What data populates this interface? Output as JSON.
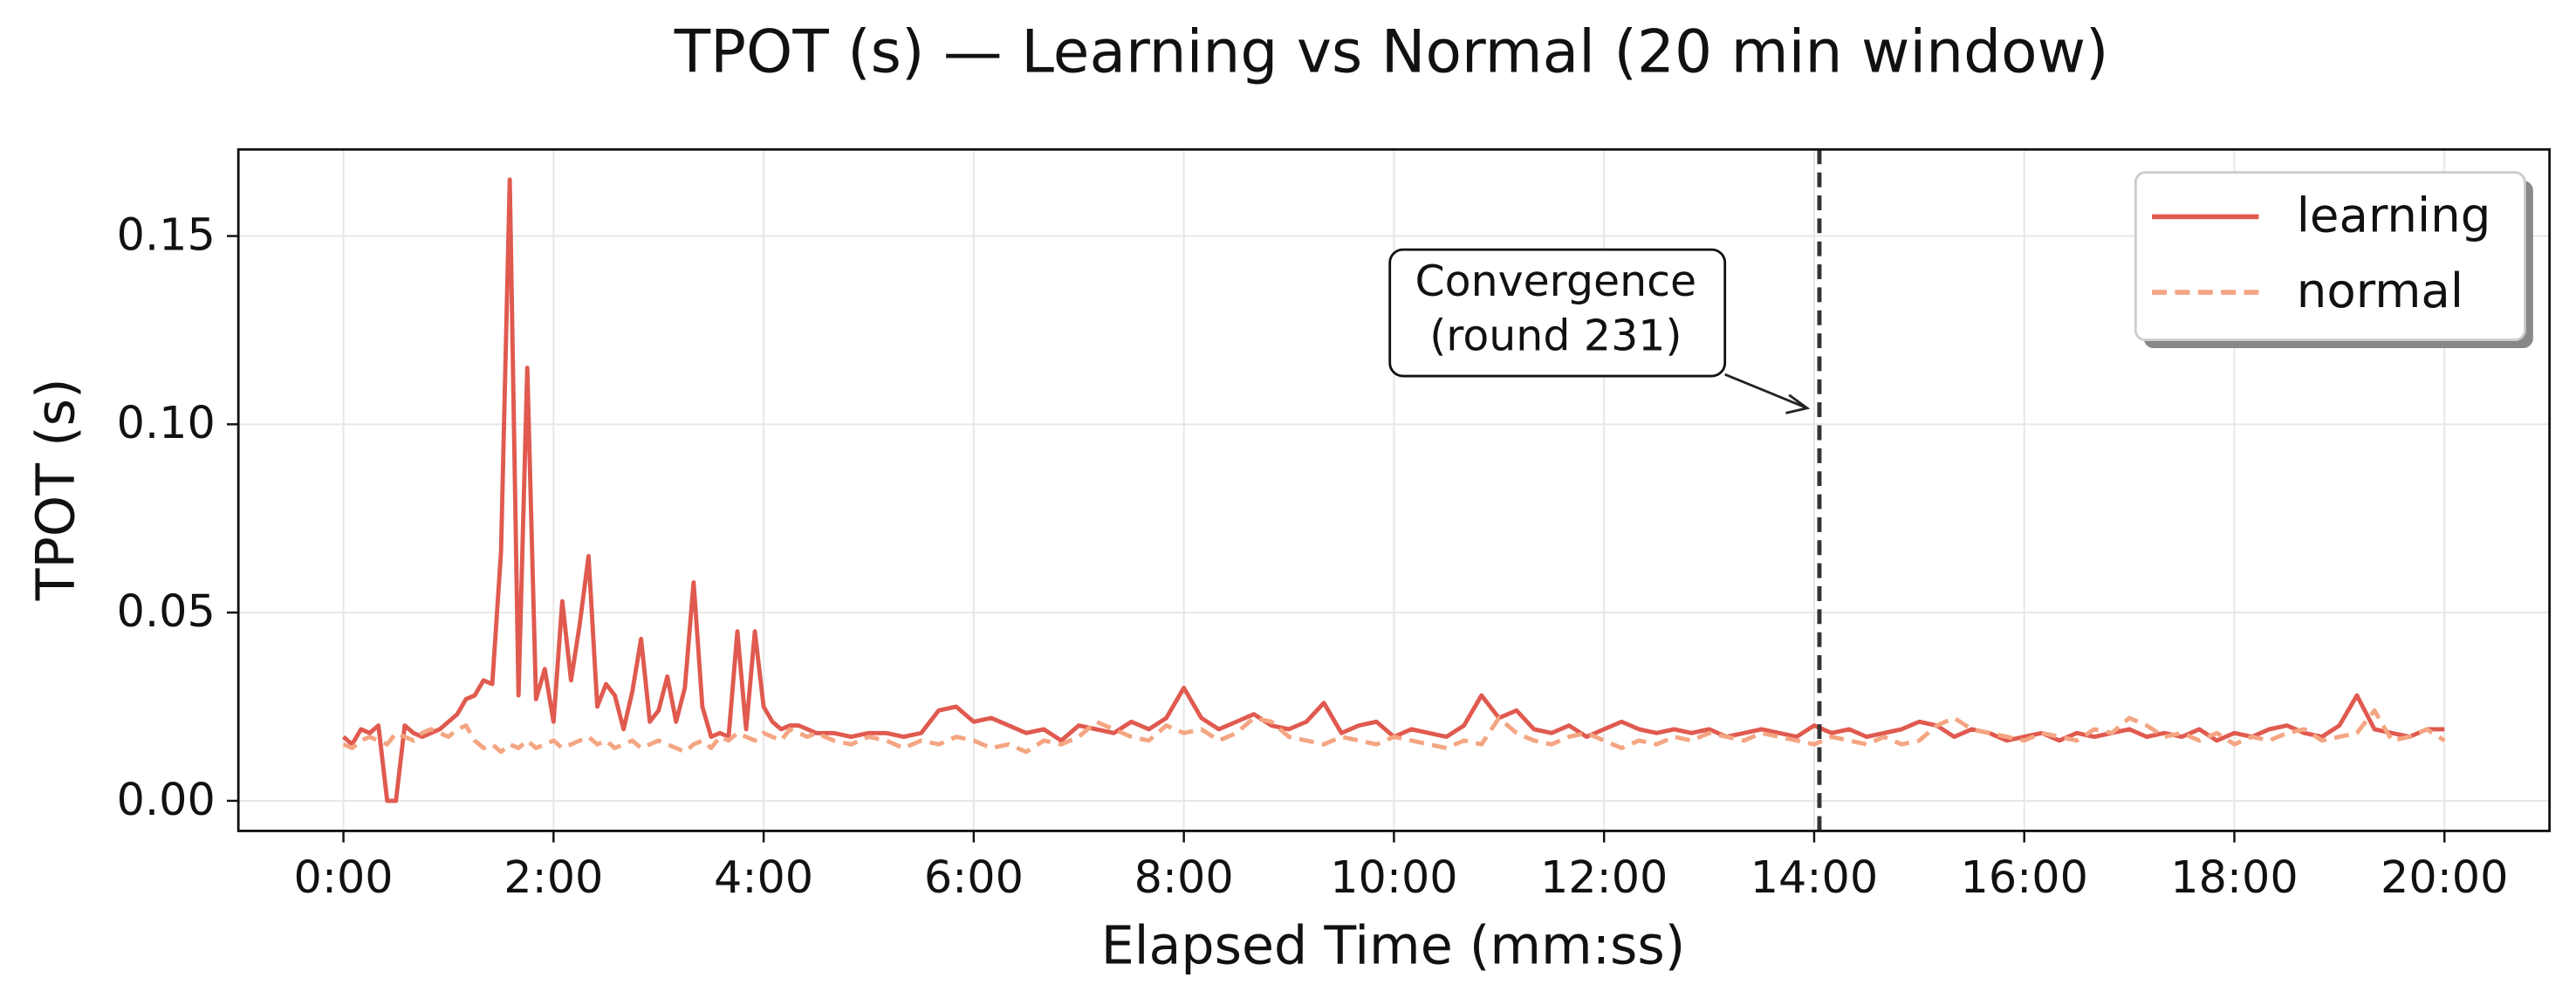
{
  "chart_data": {
    "type": "line",
    "title": "TPOT (s) — Learning vs Normal (20 min window)",
    "x_label": "Elapsed Time (mm:ss)",
    "y_label": "TPOT (s)",
    "x": [
      0,
      5,
      10,
      15,
      20,
      25,
      30,
      35,
      40,
      45,
      50,
      55,
      60,
      65,
      70,
      75,
      80,
      85,
      90,
      95,
      100,
      105,
      110,
      115,
      120,
      125,
      130,
      135,
      140,
      145,
      150,
      155,
      160,
      165,
      170,
      175,
      180,
      185,
      190,
      195,
      200,
      205,
      210,
      215,
      220,
      225,
      230,
      235,
      240,
      245,
      250,
      255,
      260,
      265,
      270,
      280,
      290,
      300,
      310,
      320,
      330,
      340,
      350,
      360,
      370,
      380,
      390,
      400,
      410,
      420,
      430,
      440,
      450,
      460,
      470,
      480,
      490,
      500,
      510,
      520,
      530,
      540,
      550,
      560,
      570,
      580,
      590,
      600,
      610,
      620,
      630,
      640,
      650,
      660,
      670,
      680,
      690,
      700,
      710,
      720,
      730,
      740,
      750,
      760,
      770,
      780,
      790,
      800,
      810,
      820,
      830,
      840,
      850,
      860,
      870,
      880,
      890,
      900,
      910,
      920,
      930,
      940,
      950,
      960,
      970,
      980,
      990,
      1000,
      1010,
      1020,
      1030,
      1040,
      1050,
      1060,
      1070,
      1080,
      1090,
      1100,
      1110,
      1120,
      1130,
      1140,
      1150,
      1160,
      1170,
      1180,
      1190,
      1200
    ],
    "series": [
      {
        "name": "learning",
        "color": "#e05a4f",
        "style": "solid",
        "values": [
          0.017,
          0.015,
          0.019,
          0.018,
          0.02,
          0.0,
          0.0,
          0.02,
          0.018,
          0.017,
          0.018,
          0.019,
          0.021,
          0.023,
          0.027,
          0.028,
          0.032,
          0.031,
          0.066,
          0.165,
          0.028,
          0.115,
          0.027,
          0.035,
          0.021,
          0.053,
          0.032,
          0.047,
          0.065,
          0.025,
          0.031,
          0.028,
          0.019,
          0.029,
          0.043,
          0.021,
          0.024,
          0.033,
          0.021,
          0.03,
          0.058,
          0.025,
          0.017,
          0.018,
          0.017,
          0.045,
          0.019,
          0.045,
          0.025,
          0.021,
          0.019,
          0.02,
          0.02,
          0.019,
          0.018,
          0.018,
          0.017,
          0.018,
          0.018,
          0.017,
          0.018,
          0.024,
          0.025,
          0.021,
          0.022,
          0.02,
          0.018,
          0.019,
          0.016,
          0.02,
          0.019,
          0.018,
          0.021,
          0.019,
          0.022,
          0.03,
          0.022,
          0.019,
          0.021,
          0.023,
          0.02,
          0.019,
          0.021,
          0.026,
          0.018,
          0.02,
          0.021,
          0.017,
          0.019,
          0.018,
          0.017,
          0.02,
          0.028,
          0.022,
          0.024,
          0.019,
          0.018,
          0.02,
          0.017,
          0.019,
          0.021,
          0.019,
          0.018,
          0.019,
          0.018,
          0.019,
          0.017,
          0.018,
          0.019,
          0.018,
          0.017,
          0.02,
          0.018,
          0.019,
          0.017,
          0.018,
          0.019,
          0.021,
          0.02,
          0.017,
          0.019,
          0.018,
          0.016,
          0.017,
          0.018,
          0.016,
          0.018,
          0.017,
          0.018,
          0.019,
          0.017,
          0.018,
          0.017,
          0.019,
          0.016,
          0.018,
          0.017,
          0.019,
          0.02,
          0.018,
          0.017,
          0.02,
          0.028,
          0.019,
          0.018,
          0.017,
          0.019,
          0.019
        ]
      },
      {
        "name": "normal",
        "color": "#f4a582",
        "style": "dashed",
        "values": [
          0.015,
          0.014,
          0.016,
          0.017,
          0.016,
          0.015,
          0.018,
          0.017,
          0.016,
          0.018,
          0.019,
          0.018,
          0.017,
          0.019,
          0.02,
          0.016,
          0.014,
          0.015,
          0.013,
          0.015,
          0.014,
          0.016,
          0.014,
          0.015,
          0.016,
          0.014,
          0.015,
          0.016,
          0.017,
          0.015,
          0.016,
          0.014,
          0.015,
          0.016,
          0.014,
          0.015,
          0.016,
          0.015,
          0.014,
          0.013,
          0.015,
          0.016,
          0.014,
          0.017,
          0.016,
          0.018,
          0.017,
          0.016,
          0.018,
          0.017,
          0.016,
          0.019,
          0.018,
          0.017,
          0.018,
          0.016,
          0.015,
          0.017,
          0.016,
          0.014,
          0.016,
          0.015,
          0.017,
          0.016,
          0.014,
          0.015,
          0.013,
          0.016,
          0.015,
          0.017,
          0.021,
          0.019,
          0.017,
          0.016,
          0.02,
          0.018,
          0.019,
          0.016,
          0.018,
          0.022,
          0.021,
          0.017,
          0.016,
          0.015,
          0.017,
          0.016,
          0.015,
          0.017,
          0.016,
          0.015,
          0.014,
          0.016,
          0.015,
          0.022,
          0.018,
          0.016,
          0.015,
          0.017,
          0.018,
          0.016,
          0.014,
          0.016,
          0.015,
          0.017,
          0.016,
          0.018,
          0.017,
          0.016,
          0.018,
          0.017,
          0.016,
          0.015,
          0.017,
          0.016,
          0.015,
          0.017,
          0.015,
          0.016,
          0.02,
          0.022,
          0.019,
          0.018,
          0.017,
          0.016,
          0.018,
          0.017,
          0.016,
          0.019,
          0.018,
          0.022,
          0.02,
          0.017,
          0.018,
          0.016,
          0.018,
          0.015,
          0.017,
          0.016,
          0.018,
          0.019,
          0.016,
          0.017,
          0.018,
          0.024,
          0.016,
          0.017,
          0.019,
          0.016
        ]
      }
    ],
    "xlim": [
      -60,
      1260
    ],
    "ylim": [
      -0.008,
      0.173
    ],
    "xticks": [
      {
        "value": 0,
        "label": "0:00"
      },
      {
        "value": 120,
        "label": "2:00"
      },
      {
        "value": 240,
        "label": "4:00"
      },
      {
        "value": 360,
        "label": "6:00"
      },
      {
        "value": 480,
        "label": "8:00"
      },
      {
        "value": 600,
        "label": "10:00"
      },
      {
        "value": 720,
        "label": "12:00"
      },
      {
        "value": 840,
        "label": "14:00"
      },
      {
        "value": 960,
        "label": "16:00"
      },
      {
        "value": 1080,
        "label": "18:00"
      },
      {
        "value": 1200,
        "label": "20:00"
      }
    ],
    "yticks": [
      {
        "value": 0,
        "label": "0.00"
      },
      {
        "value": 0.05,
        "label": "0.05"
      },
      {
        "value": 0.1,
        "label": "0.10"
      },
      {
        "value": 0.15,
        "label": "0.15"
      }
    ],
    "grid": true,
    "legend": "upper right",
    "vline": {
      "x": 843,
      "color": "#333333"
    },
    "annotation": {
      "lines": [
        "Convergence",
        "(round 231)"
      ],
      "x": 836,
      "y": 0.1043
    }
  }
}
